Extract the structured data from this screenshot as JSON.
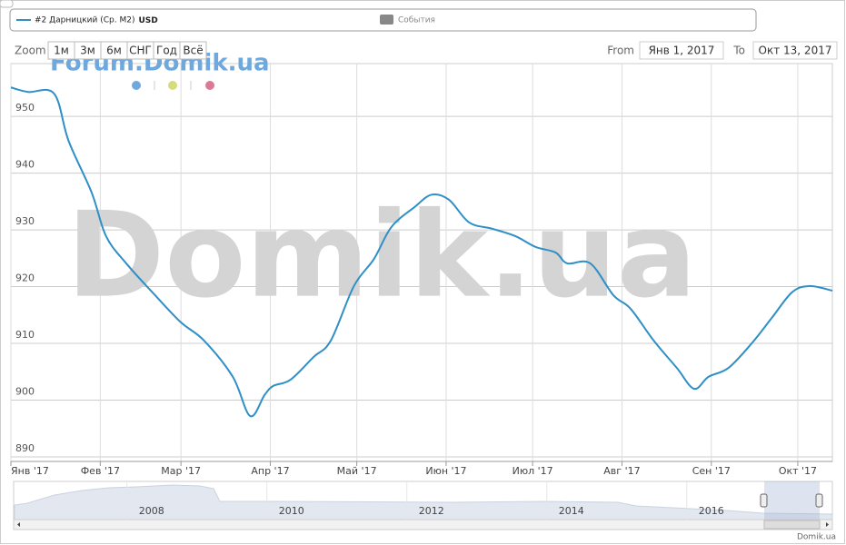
{
  "legend": {
    "unit": "USD",
    "events": "События"
  },
  "range_selector": {
    "zoom": "Zoom",
    "buttons": [
      "1м",
      "3м",
      "6м",
      "СНГ",
      "Год",
      "Всё"
    ],
    "from_label": "From",
    "from": "Янв 1, 2017",
    "to_label": "To",
    "to": "Окт 13, 2017"
  },
  "watermarks": {
    "forum": "Forum.Domik.ua",
    "main": "Domik.ua"
  },
  "credit": "Domik.ua",
  "navigator": {
    "xlim": [
      2006.03,
      2017.73
    ],
    "xticks": [
      2008,
      2010,
      2012,
      2014,
      2016
    ]
  },
  "chart_data": {
    "type": "line",
    "x": [
      0,
      6,
      15,
      20,
      28,
      33,
      40,
      50,
      59,
      67,
      77,
      83,
      88,
      91,
      97,
      105,
      111,
      119,
      126,
      132,
      140,
      146,
      152,
      159,
      167,
      175,
      182,
      189,
      193,
      201,
      209,
      215,
      223,
      231,
      237,
      242,
      249,
      257,
      264,
      271,
      277,
      285
    ],
    "series": [
      {
        "name": "#2 Дарницкий (Ср. М2)",
        "color": "#2f8fc6",
        "values": [
          955.1,
          954.3,
          954,
          945.7,
          936.6,
          928.9,
          924.1,
          918.5,
          913.7,
          910.5,
          904.1,
          897.2,
          900.9,
          902.5,
          903.6,
          907.6,
          910.5,
          920.1,
          924.9,
          930.5,
          934,
          936.2,
          935.3,
          931.3,
          930.2,
          928.9,
          927,
          926,
          924.1,
          924.1,
          918.5,
          916.1,
          910.5,
          905.7,
          902,
          904.1,
          905.7,
          910,
          914.5,
          919,
          920.1,
          919.3
        ]
      }
    ],
    "xlim": [
      0,
      285
    ],
    "xticks": [
      {
        "value": 0,
        "label": "Янв '17"
      },
      {
        "value": 31,
        "label": "Фев '17"
      },
      {
        "value": 59,
        "label": "Мар '17"
      },
      {
        "value": 90,
        "label": "Апр '17"
      },
      {
        "value": 120,
        "label": "Май '17"
      },
      {
        "value": 151,
        "label": "Июн '17"
      },
      {
        "value": 181,
        "label": "Июл '17"
      },
      {
        "value": 212,
        "label": "Авг '17"
      },
      {
        "value": 243,
        "label": "Сен '17"
      },
      {
        "value": 273,
        "label": "Окт '17"
      }
    ],
    "ylim": [
      889.2,
      959.3
    ],
    "yticks": [
      890,
      900,
      910,
      920,
      930,
      940,
      950
    ],
    "grid": true
  }
}
